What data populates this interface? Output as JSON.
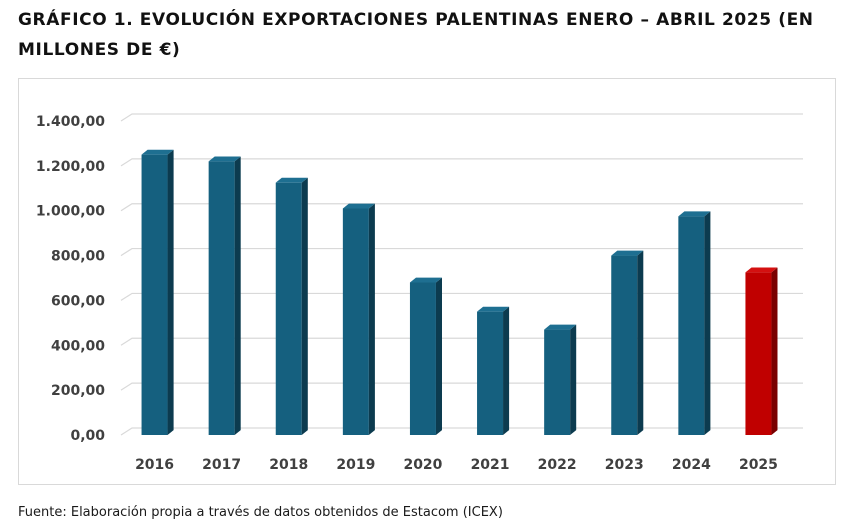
{
  "title": "GRÁFICO 1. EVOLUCIÓN EXPORTACIONES PALENTINAS ENERO – ABRIL 2025 (EN MILLONES DE €)",
  "source": "Fuente: Elaboración propia a través de datos obtenidos de Estacom (ICEX)",
  "colors": {
    "bar": "#15607f",
    "bar_side": "#0c3b4f",
    "bar_top": "#1e6f91",
    "highlight": "#c00000",
    "highlight_side": "#7a0000",
    "highlight_top": "#d41010",
    "grid": "#d9d9d9"
  },
  "chart_data": {
    "type": "bar",
    "title": "GRÁFICO 1. EVOLUCIÓN EXPORTACIONES PALENTINAS ENERO – ABRIL 2025 (EN MILLONES DE €)",
    "xlabel": "",
    "ylabel": "",
    "categories": [
      "2016",
      "2017",
      "2018",
      "2019",
      "2020",
      "2021",
      "2022",
      "2023",
      "2024",
      "2025"
    ],
    "values": [
      1250,
      1220,
      1125,
      1010,
      680,
      550,
      470,
      800,
      975,
      725
    ],
    "highlighted_category": "2025",
    "ylim": [
      0,
      1400
    ],
    "yticks": [
      "0,00",
      "200,00",
      "400,00",
      "600,00",
      "800,00",
      "1.000,00",
      "1.200,00",
      "1.400,00"
    ],
    "grid": true,
    "legend": "none",
    "style": "3d-columns"
  }
}
